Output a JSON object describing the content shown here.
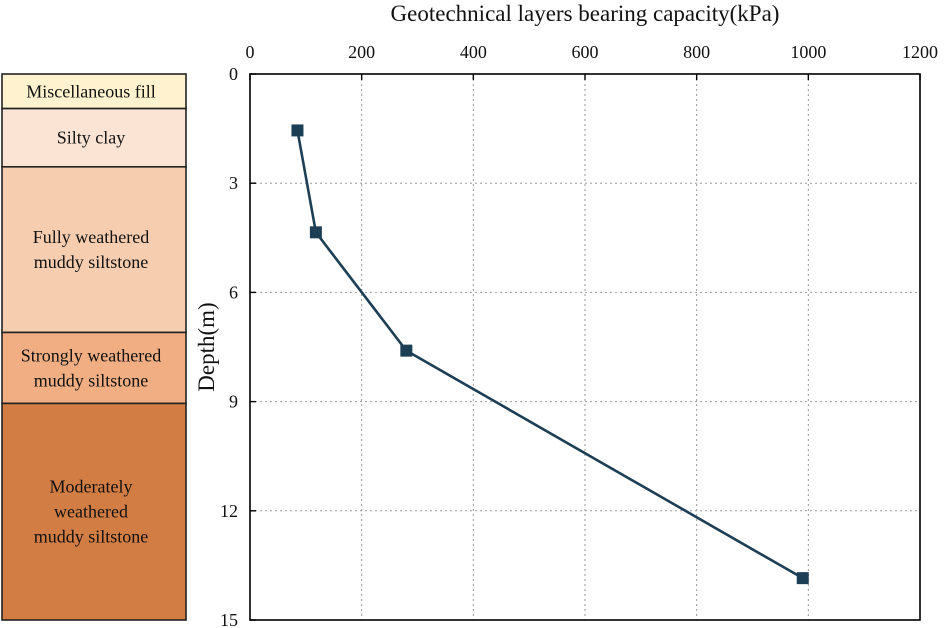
{
  "chart_data": {
    "type": "line",
    "title": "",
    "xlabel": "Geotechnical layers bearing capacity(kPa)",
    "ylabel": "Depth(m)",
    "xlim": [
      0,
      1200
    ],
    "ylim": [
      0,
      15
    ],
    "x_ticks": [
      "0",
      "200",
      "400",
      "600",
      "800",
      "1000",
      "1200"
    ],
    "y_ticks": [
      "0",
      "3",
      "6",
      "9",
      "12",
      "15"
    ],
    "x_axis_position": "top",
    "y_axis_inverted": true,
    "grid": true,
    "series": [
      {
        "color": "#1d3f55",
        "marker": "square",
        "x": [
          85,
          118,
          280,
          990
        ],
        "y": [
          1.55,
          4.35,
          7.6,
          13.85
        ]
      }
    ]
  },
  "strata": [
    {
      "label_lines": [
        "Miscellaneous fill"
      ],
      "top_depth": 0,
      "bottom_depth": 0.95,
      "color": "#fff2cf"
    },
    {
      "label_lines": [
        "Silty clay"
      ],
      "top_depth": 0.95,
      "bottom_depth": 2.55,
      "color": "#fbe4d4"
    },
    {
      "label_lines": [
        "Fully weathered",
        "muddy siltstone"
      ],
      "top_depth": 2.55,
      "bottom_depth": 7.1,
      "color": "#f6cdaf"
    },
    {
      "label_lines": [
        "Strongly weathered",
        "muddy siltstone"
      ],
      "top_depth": 7.1,
      "bottom_depth": 9.05,
      "color": "#f1ae83"
    },
    {
      "label_lines": [
        "Moderately",
        "weathered",
        "muddy siltstone"
      ],
      "top_depth": 9.05,
      "bottom_depth": 15,
      "color": "#d27d44"
    }
  ]
}
